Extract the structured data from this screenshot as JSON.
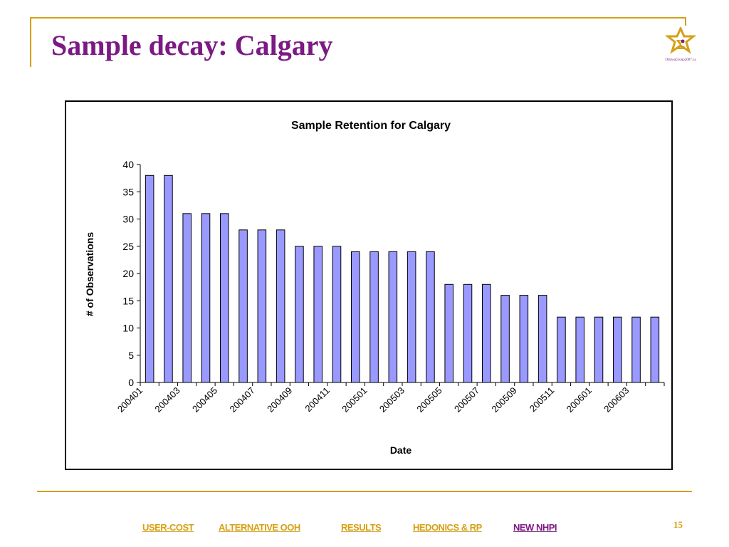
{
  "slide": {
    "title": "Sample decay: Calgary",
    "logo_text": "OttawaGroup2007.ca",
    "page_number": "15",
    "colors": {
      "title": "#7b1a83",
      "accent": "#d4a017",
      "bar_fill": "#9999ff"
    }
  },
  "nav": {
    "items": [
      {
        "label": "USER-COST",
        "active": false
      },
      {
        "label": "ALTERNATIVE OOH",
        "active": false
      },
      {
        "label": "RESULTS",
        "active": false
      },
      {
        "label": "HEDONICS & RP",
        "active": false
      },
      {
        "label": "NEW NHPI",
        "active": true
      }
    ]
  },
  "chart_data": {
    "type": "bar",
    "title": "Sample Retention for Calgary",
    "xlabel": "Date",
    "ylabel": "# of Observations",
    "ylim": [
      0,
      40
    ],
    "yticks": [
      0,
      5,
      10,
      15,
      20,
      25,
      30,
      35,
      40
    ],
    "grid": false,
    "legend": "none",
    "categories": [
      "200401",
      "200402",
      "200403",
      "200404",
      "200405",
      "200406",
      "200407",
      "200408",
      "200409",
      "200410",
      "200411",
      "200412",
      "200501",
      "200502",
      "200503",
      "200504",
      "200505",
      "200506",
      "200507",
      "200508",
      "200509",
      "200510",
      "200511",
      "200512",
      "200601",
      "200602",
      "200603",
      "200604"
    ],
    "tick_labels": [
      "200401",
      "",
      "200403",
      "",
      "200405",
      "",
      "200407",
      "",
      "200409",
      "",
      "200411",
      "",
      "200501",
      "",
      "200503",
      "",
      "200505",
      "",
      "200507",
      "",
      "200509",
      "",
      "200511",
      "",
      "200601",
      "",
      "200603",
      ""
    ],
    "values": [
      38,
      38,
      31,
      31,
      31,
      28,
      28,
      28,
      25,
      25,
      25,
      24,
      24,
      24,
      24,
      24,
      18,
      18,
      18,
      16,
      16,
      16,
      12,
      12,
      12,
      12,
      12,
      12
    ]
  }
}
